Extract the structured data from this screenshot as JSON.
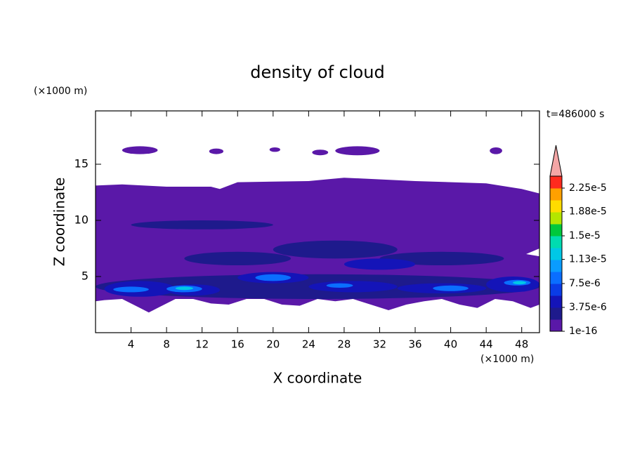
{
  "chart_data": {
    "type": "contour",
    "title": "density of cloud",
    "xlabel": "X coordinate",
    "ylabel": "Z coordinate",
    "xunit": "(×1000 m)",
    "yunit": "(×1000 m)",
    "time_label": "t=486000 s",
    "xlim": [
      0,
      50
    ],
    "ylim": [
      0,
      19.75
    ],
    "xticks": [
      4,
      8,
      12,
      16,
      20,
      24,
      28,
      32,
      36,
      40,
      44,
      48
    ],
    "yticks": [
      5,
      10,
      15
    ],
    "clim": [
      1e-16,
      2.4375e-05
    ],
    "cticks": [
      1e-16,
      {
        "value": 3.75e-06,
        "label": "3.75e-6"
      },
      {
        "value": 7.5e-06,
        "label": "7.5e-6"
      },
      {
        "value": 1.13e-05,
        "label": "1.13e-5"
      },
      {
        "value": 1.5e-05,
        "label": "1.5e-5"
      },
      {
        "value": 1.88e-05,
        "label": "1.88e-5"
      },
      {
        "value": 2.25e-05,
        "label": "2.25e-5"
      }
    ],
    "colors": [
      "#5a18a8",
      "#1e1a8c",
      "#1414b8",
      "#0a3ce6",
      "#0a6eff",
      "#0a9cff",
      "#00c8e6",
      "#00dcb0",
      "#00c83c",
      "#b4e600",
      "#ffdc00",
      "#ffa000",
      "#ff2a1e"
    ],
    "extend_color": "#f4a6a6",
    "body": {
      "value": 1e-16,
      "x": [
        0,
        3,
        8,
        13,
        14,
        16,
        24,
        28,
        36,
        44,
        48,
        50,
        50,
        48.5,
        50,
        50,
        49,
        47,
        45,
        43,
        41,
        39,
        37,
        35,
        33,
        31,
        29,
        27,
        25,
        23,
        21,
        19,
        17,
        15,
        13,
        11,
        9,
        7,
        6,
        5,
        3,
        1,
        0
      ],
      "z": [
        13.1,
        13.2,
        13.0,
        13.0,
        12.8,
        13.4,
        13.5,
        13.8,
        13.5,
        13.3,
        12.8,
        12.4,
        7.5,
        7.0,
        6.8,
        2.5,
        2.2,
        2.8,
        3.0,
        2.2,
        2.5,
        3.0,
        2.8,
        2.5,
        2.0,
        2.5,
        3.0,
        2.8,
        3.0,
        2.4,
        2.5,
        3.0,
        3.0,
        2.5,
        2.6,
        3.0,
        3.0,
        2.2,
        1.8,
        2.2,
        3.0,
        2.9,
        2.8
      ]
    },
    "patches": [
      {
        "value": 1e-16,
        "x": [
          3,
          7
        ],
        "z": [
          15.9,
          16.6
        ]
      },
      {
        "value": 1e-16,
        "x": [
          12.8,
          14.4
        ],
        "z": [
          15.9,
          16.4
        ]
      },
      {
        "value": 1e-16,
        "x": [
          19.6,
          20.8
        ],
        "z": [
          16.1,
          16.5
        ]
      },
      {
        "value": 1e-16,
        "x": [
          24.4,
          26.2
        ],
        "z": [
          15.8,
          16.3
        ]
      },
      {
        "value": 1e-16,
        "x": [
          27,
          32
        ],
        "z": [
          15.8,
          16.6
        ]
      },
      {
        "value": 1e-16,
        "x": [
          44.4,
          45.8
        ],
        "z": [
          15.9,
          16.5
        ]
      },
      {
        "value": 2.5e-06,
        "x": [
          0,
          50
        ],
        "z": [
          3.0,
          5.2
        ]
      },
      {
        "value": 2.5e-06,
        "x": [
          10,
          22
        ],
        "z": [
          6.0,
          7.2
        ]
      },
      {
        "value": 2.5e-06,
        "x": [
          20,
          34
        ],
        "z": [
          6.6,
          8.2
        ]
      },
      {
        "value": 2.5e-06,
        "x": [
          32,
          46
        ],
        "z": [
          6.0,
          7.2
        ]
      },
      {
        "value": 2.5e-06,
        "x": [
          4,
          20
        ],
        "z": [
          9.2,
          10.0
        ]
      },
      {
        "value": 5e-06,
        "x": [
          1,
          9
        ],
        "z": [
          3.2,
          4.6
        ]
      },
      {
        "value": 5e-06,
        "x": [
          8,
          14
        ],
        "z": [
          3.3,
          4.3
        ]
      },
      {
        "value": 5e-06,
        "x": [
          16,
          24
        ],
        "z": [
          4.4,
          5.4
        ]
      },
      {
        "value": 5e-06,
        "x": [
          24,
          34
        ],
        "z": [
          3.6,
          4.6
        ]
      },
      {
        "value": 5e-06,
        "x": [
          34,
          44
        ],
        "z": [
          3.5,
          4.4
        ]
      },
      {
        "value": 5e-06,
        "x": [
          44,
          50
        ],
        "z": [
          3.6,
          5.0
        ]
      },
      {
        "value": 5e-06,
        "x": [
          28,
          36
        ],
        "z": [
          5.6,
          6.6
        ]
      },
      {
        "value": 8e-06,
        "x": [
          2,
          6
        ],
        "z": [
          3.6,
          4.1
        ]
      },
      {
        "value": 8e-06,
        "x": [
          8,
          12
        ],
        "z": [
          3.6,
          4.2
        ]
      },
      {
        "value": 8e-06,
        "x": [
          18,
          22
        ],
        "z": [
          4.6,
          5.2
        ]
      },
      {
        "value": 8e-06,
        "x": [
          26,
          29
        ],
        "z": [
          4.0,
          4.4
        ]
      },
      {
        "value": 8e-06,
        "x": [
          38,
          42
        ],
        "z": [
          3.7,
          4.2
        ]
      },
      {
        "value": 8e-06,
        "x": [
          46,
          49
        ],
        "z": [
          4.2,
          4.7
        ]
      },
      {
        "value": 1.2e-05,
        "x": [
          9,
          11
        ],
        "z": [
          3.8,
          4.1
        ]
      },
      {
        "value": 1.2e-05,
        "x": [
          47,
          48.5
        ],
        "z": [
          4.3,
          4.6
        ]
      }
    ]
  }
}
